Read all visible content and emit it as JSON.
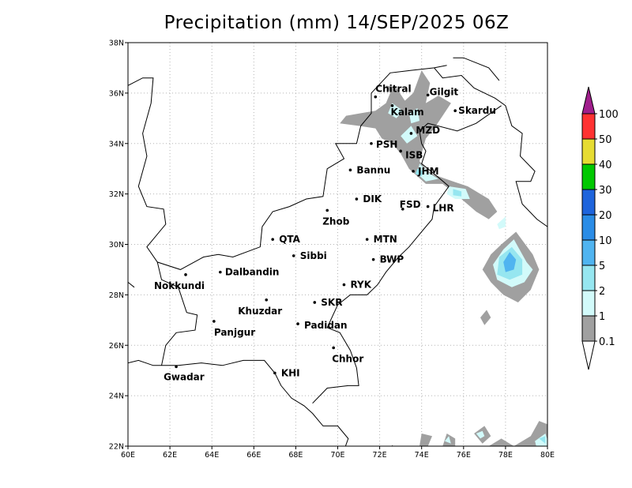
{
  "title": "Precipitation (mm) 14/SEP/2025 06Z",
  "map": {
    "lon_range": [
      60,
      80
    ],
    "lat_range": [
      22,
      38
    ],
    "x_ticks": [
      "60E",
      "62E",
      "64E",
      "66E",
      "68E",
      "70E",
      "72E",
      "74E",
      "76E",
      "78E",
      "80E"
    ],
    "y_ticks": [
      "22N",
      "24N",
      "26N",
      "28N",
      "30N",
      "32N",
      "34N",
      "36N",
      "38N"
    ],
    "grid": "dotted",
    "border_color": "#000000"
  },
  "stations": [
    {
      "name": "Chitral",
      "lon": 71.8,
      "lat": 35.85
    },
    {
      "name": "Gilgit",
      "lon": 74.3,
      "lat": 35.92
    },
    {
      "name": "Kalam",
      "lon": 72.6,
      "lat": 35.5
    },
    {
      "name": "Skardu",
      "lon": 75.6,
      "lat": 35.3
    },
    {
      "name": "MZD",
      "lon": 73.5,
      "lat": 34.4
    },
    {
      "name": "PSH",
      "lon": 71.6,
      "lat": 34.0
    },
    {
      "name": "ISB",
      "lon": 73.0,
      "lat": 33.7
    },
    {
      "name": "JHM",
      "lon": 73.6,
      "lat": 32.9
    },
    {
      "name": "Bannu",
      "lon": 70.6,
      "lat": 32.95
    },
    {
      "name": "DIK",
      "lon": 70.9,
      "lat": 31.8
    },
    {
      "name": "FSD",
      "lon": 73.1,
      "lat": 31.4
    },
    {
      "name": "LHR",
      "lon": 74.3,
      "lat": 31.5
    },
    {
      "name": "Zhob",
      "lon": 69.5,
      "lat": 31.35
    },
    {
      "name": "QTA",
      "lon": 66.9,
      "lat": 30.2
    },
    {
      "name": "MTN",
      "lon": 71.4,
      "lat": 30.2
    },
    {
      "name": "Sibbi",
      "lon": 67.9,
      "lat": 29.55
    },
    {
      "name": "BWP",
      "lon": 71.7,
      "lat": 29.4
    },
    {
      "name": "Nokkundi",
      "lon": 62.75,
      "lat": 28.8
    },
    {
      "name": "Dalbandin",
      "lon": 64.4,
      "lat": 28.9
    },
    {
      "name": "RYK",
      "lon": 70.3,
      "lat": 28.4
    },
    {
      "name": "Khuzdar",
      "lon": 66.6,
      "lat": 27.8
    },
    {
      "name": "SKR",
      "lon": 68.9,
      "lat": 27.7
    },
    {
      "name": "Panjgur",
      "lon": 64.1,
      "lat": 26.95
    },
    {
      "name": "Padidan",
      "lon": 68.1,
      "lat": 26.85
    },
    {
      "name": "Chhor",
      "lon": 69.8,
      "lat": 25.9
    },
    {
      "name": "KHI",
      "lon": 67.0,
      "lat": 24.9
    },
    {
      "name": "Gwadar",
      "lon": 62.3,
      "lat": 25.15
    }
  ],
  "colorbar": {
    "labels": [
      "0.1",
      "1",
      "2",
      "5",
      "10",
      "20",
      "30",
      "40",
      "50",
      "100"
    ],
    "colors": [
      "#a0a0a0",
      "#d2fafa",
      "#96e6f0",
      "#50b4f0",
      "#2a8ce6",
      "#1e64dc",
      "#00c800",
      "#e6dc32",
      "#ff3232",
      "#a01e8c"
    ]
  }
}
